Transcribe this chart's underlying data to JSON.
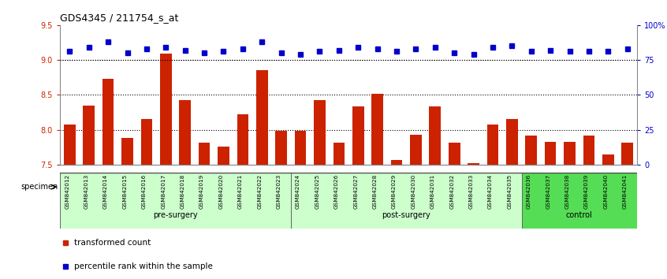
{
  "title": "GDS4345 / 211754_s_at",
  "samples": [
    "GSM842012",
    "GSM842013",
    "GSM842014",
    "GSM842015",
    "GSM842016",
    "GSM842017",
    "GSM842018",
    "GSM842019",
    "GSM842020",
    "GSM842021",
    "GSM842022",
    "GSM842023",
    "GSM842024",
    "GSM842025",
    "GSM842026",
    "GSM842027",
    "GSM842028",
    "GSM842029",
    "GSM842030",
    "GSM842031",
    "GSM842032",
    "GSM842033",
    "GSM842034",
    "GSM842035",
    "GSM842036",
    "GSM842037",
    "GSM842038",
    "GSM842039",
    "GSM842040",
    "GSM842041"
  ],
  "bar_values": [
    8.08,
    8.35,
    8.73,
    7.88,
    8.15,
    9.09,
    8.42,
    7.82,
    7.76,
    8.22,
    8.85,
    7.98,
    7.98,
    8.42,
    7.82,
    8.33,
    8.51,
    7.57,
    7.93,
    8.33,
    7.82,
    7.52,
    8.08,
    8.15,
    7.92,
    7.83,
    7.83,
    7.92,
    7.65,
    7.82
  ],
  "percentile_values": [
    81,
    84,
    88,
    80,
    83,
    84,
    82,
    80,
    81,
    83,
    88,
    80,
    79,
    81,
    82,
    84,
    83,
    81,
    83,
    84,
    80,
    79,
    84,
    85,
    81,
    82,
    81,
    81,
    81,
    83
  ],
  "groups": [
    {
      "label": "pre-surgery",
      "start": 0,
      "end": 11
    },
    {
      "label": "post-surgery",
      "start": 12,
      "end": 23
    },
    {
      "label": "control",
      "start": 24,
      "end": 29
    }
  ],
  "group_colors": [
    "#ccffcc",
    "#ccffcc",
    "#55dd55"
  ],
  "ylim_left": [
    7.5,
    9.5
  ],
  "ylim_right": [
    0,
    100
  ],
  "yticks_left": [
    7.5,
    8.0,
    8.5,
    9.0,
    9.5
  ],
  "yticks_right": [
    0,
    25,
    50,
    75,
    100
  ],
  "ytick_labels_right": [
    "0",
    "25",
    "50",
    "75",
    "100%"
  ],
  "bar_color": "#cc2200",
  "dot_color": "#0000cc",
  "bar_bottom": 7.5,
  "grid_lines": [
    8.0,
    8.5,
    9.0
  ],
  "specimen_label": "specimen"
}
